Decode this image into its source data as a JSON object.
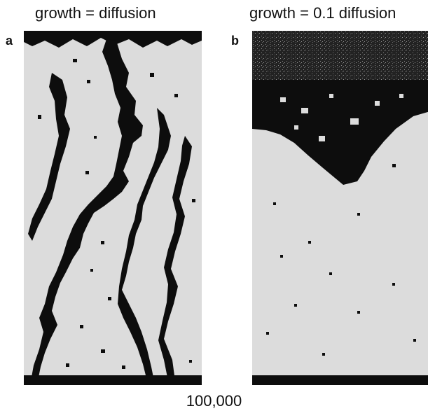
{
  "figure": {
    "panels": [
      {
        "letter": "a",
        "title": "growth = diffusion"
      },
      {
        "letter": "b",
        "title": "growth = 0.1 diffusion"
      }
    ],
    "footer_label": "100,000",
    "colors": {
      "light_phase": "#dcdcdc",
      "dark_phase": "#0d0d0d"
    }
  }
}
